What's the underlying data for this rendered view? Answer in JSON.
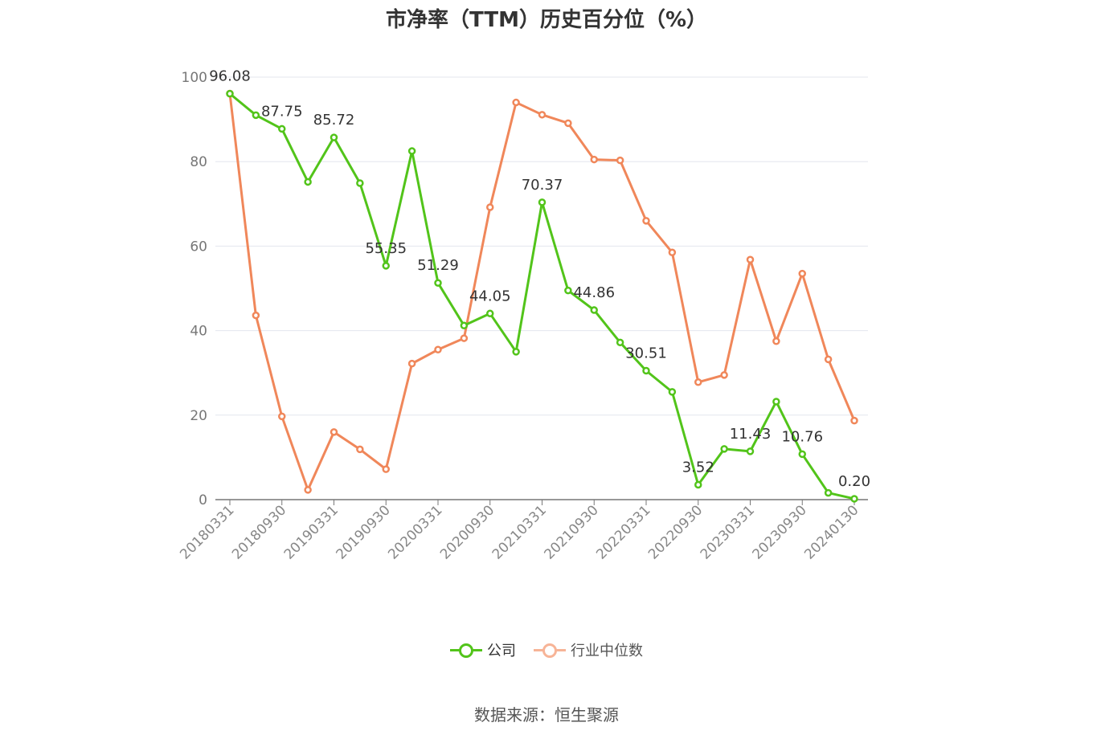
{
  "chart_data": {
    "type": "line",
    "title": "市净率（TTM）历史百分位（%）",
    "ylim": [
      0,
      100
    ],
    "y_ticks": [
      "0",
      "20",
      "40",
      "60",
      "80",
      "100"
    ],
    "x_tick_labels": [
      "20180331",
      "20180930",
      "20190331",
      "20190930",
      "20200331",
      "20200930",
      "20210331",
      "20210930",
      "20220331",
      "20220930",
      "20230331",
      "20230930",
      "20240130"
    ],
    "x": [
      "20180331",
      "20180630",
      "20180930",
      "20181231",
      "20190331",
      "20190630",
      "20190930",
      "20191231",
      "20200331",
      "20200630",
      "20200930",
      "20201231",
      "20210331",
      "20210630",
      "20210930",
      "20211231",
      "20220331",
      "20220630",
      "20220930",
      "20221231",
      "20230331",
      "20230630",
      "20230930",
      "20231231",
      "20240130"
    ],
    "grid": true,
    "legend_placement": "bottom",
    "series": [
      {
        "name": "公司",
        "color": "#52c41a",
        "values": [
          96.08,
          91.0,
          87.75,
          75.2,
          85.72,
          74.9,
          55.35,
          82.5,
          51.29,
          41.2,
          44.05,
          35.0,
          70.37,
          49.5,
          44.86,
          37.2,
          30.51,
          25.5,
          3.52,
          12.0,
          11.43,
          23.2,
          10.76,
          1.6,
          0.2
        ],
        "labels": [
          "96.08",
          "",
          "87.75",
          "",
          "85.72",
          "",
          "55.35",
          "",
          "51.29",
          "",
          "44.05",
          "",
          "70.37",
          "",
          "44.86",
          "",
          "30.51",
          "",
          "3.52",
          "",
          "11.43",
          "",
          "10.76",
          "",
          "0.20"
        ]
      },
      {
        "name": "行业中位数",
        "color": "#f0875a",
        "values": [
          96.1,
          43.6,
          19.7,
          2.3,
          16.0,
          11.9,
          7.2,
          32.2,
          35.5,
          38.2,
          69.2,
          94.0,
          91.1,
          89.1,
          80.5,
          80.3,
          66.0,
          58.5,
          27.8,
          29.5,
          56.8,
          37.5,
          53.5,
          33.2,
          18.7
        ]
      }
    ]
  },
  "legend": {
    "company": "公司",
    "industry": "行业中位数"
  },
  "source": "数据来源：恒生聚源"
}
